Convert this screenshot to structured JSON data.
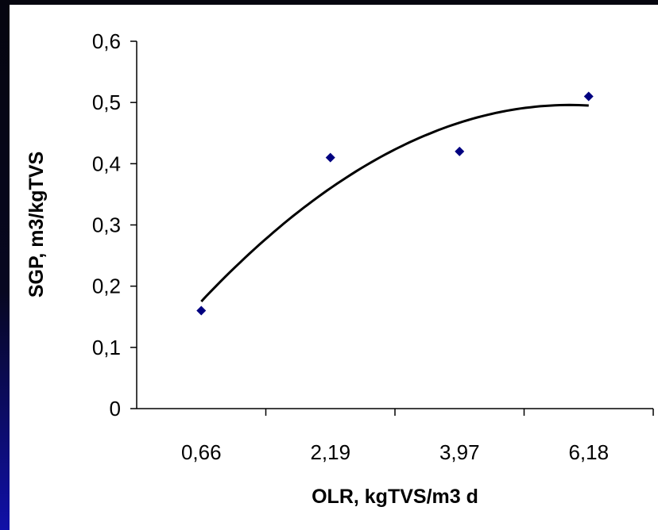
{
  "chart_data": {
    "type": "scatter",
    "title": "",
    "xlabel": "OLR, kgTVS/m3 d",
    "ylabel": "SGP, m3/kgTVS",
    "categories": [
      "0,66",
      "2,19",
      "3,97",
      "6,18"
    ],
    "ylim": [
      0,
      0.6
    ],
    "y_ticks": [
      "0",
      "0,1",
      "0,2",
      "0,3",
      "0,4",
      "0,5",
      "0,6"
    ],
    "series": [
      {
        "values": [
          0.16,
          0.41,
          0.42,
          0.51
        ],
        "color": "#000080",
        "marker": "diamond"
      }
    ],
    "trendline": {
      "type": "polynomial",
      "color": "#000000",
      "values": [
        0.175,
        0.36,
        0.467,
        0.495
      ]
    },
    "grid": false,
    "legend": "none"
  }
}
